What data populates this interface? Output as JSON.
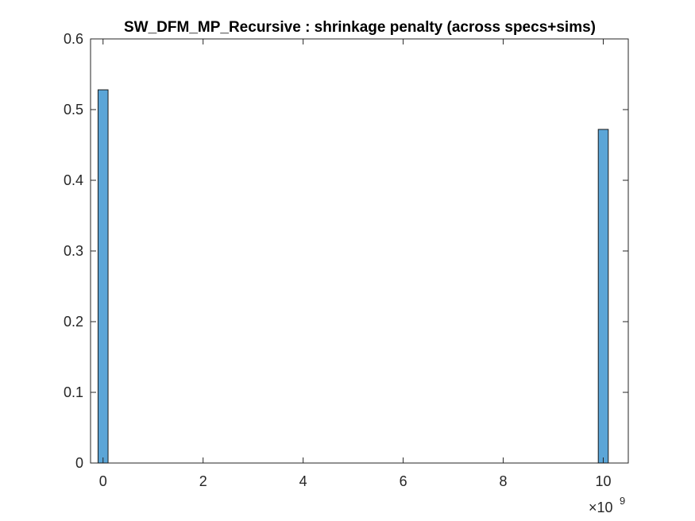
{
  "chart_data": {
    "type": "bar",
    "title": "SW_DFM_MP_Recursive : shrinkage penalty (across specs+sims)",
    "xlabel": "",
    "ylabel": "",
    "x_multiplier_label": {
      "base": "×10",
      "exponent": "9"
    },
    "xlim": [
      -0.25,
      10.5
    ],
    "ylim": [
      0,
      0.6
    ],
    "xticks": [
      0,
      2,
      4,
      6,
      8,
      10
    ],
    "xtick_labels": [
      "0",
      "2",
      "4",
      "6",
      "8",
      "10"
    ],
    "yticks": [
      0,
      0.1,
      0.2,
      0.3,
      0.4,
      0.5,
      0.6
    ],
    "ytick_labels": [
      "0",
      "0.1",
      "0.2",
      "0.3",
      "0.4",
      "0.5",
      "0.6"
    ],
    "bin_edges_start": -0.1,
    "bin_width": 0.2,
    "values": [
      0.528,
      0,
      0,
      0,
      0,
      0,
      0,
      0,
      0,
      0,
      0,
      0,
      0,
      0,
      0,
      0,
      0,
      0,
      0,
      0,
      0,
      0,
      0,
      0,
      0,
      0,
      0,
      0,
      0,
      0,
      0,
      0,
      0,
      0,
      0,
      0,
      0,
      0,
      0,
      0,
      0,
      0,
      0,
      0,
      0,
      0,
      0,
      0,
      0,
      0,
      0.472
    ],
    "bar_color": "#5ba5d7",
    "edge_color": "#1a1a1a",
    "grid": false,
    "legend": "none"
  }
}
